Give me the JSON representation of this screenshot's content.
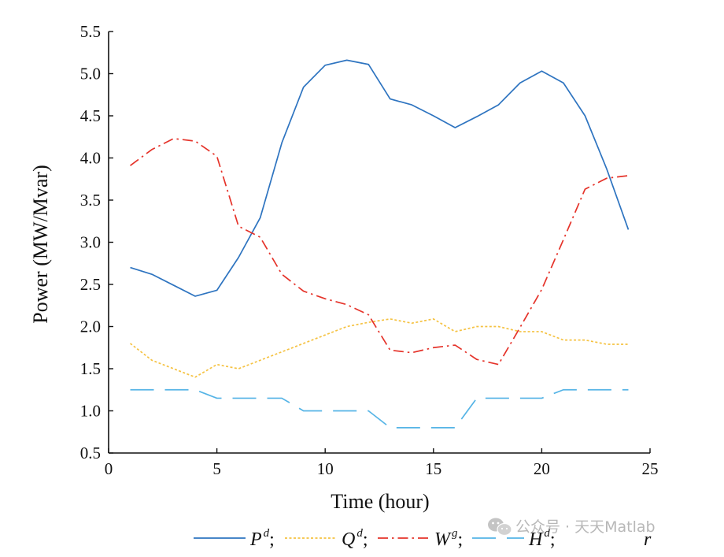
{
  "chart_data": {
    "type": "line",
    "title": "",
    "xlabel": "Time (hour)",
    "ylabel": "Power (MW/Mvar)",
    "xlim": [
      0,
      25
    ],
    "ylim": [
      0.5,
      5.5
    ],
    "xticks": [
      0,
      5,
      10,
      15,
      20,
      25
    ],
    "yticks": [
      0.5,
      1.0,
      1.5,
      2.0,
      2.5,
      3.0,
      3.5,
      4.0,
      4.5,
      5.0,
      5.5
    ],
    "xtick_labels": [
      "0",
      "5",
      "10",
      "15",
      "20",
      "25"
    ],
    "ytick_labels": [
      "0.5",
      "1.0",
      "1.5",
      "2.0",
      "2.5",
      "3.0",
      "3.5",
      "4.0",
      "4.5",
      "5.0",
      "5.5"
    ],
    "x": [
      1,
      2,
      3,
      4,
      5,
      6,
      7,
      8,
      9,
      10,
      11,
      12,
      13,
      14,
      15,
      16,
      17,
      18,
      19,
      20,
      21,
      22,
      23,
      24
    ],
    "legend_position": "bottom",
    "series": [
      {
        "name": "P^d",
        "legend_base": "P",
        "legend_sup": "d",
        "style": "solid",
        "color": "#2e74c0",
        "values": [
          2.7,
          2.62,
          2.49,
          2.36,
          2.43,
          2.82,
          3.29,
          4.18,
          4.84,
          5.1,
          5.16,
          5.11,
          4.7,
          4.63,
          4.5,
          4.36,
          4.49,
          4.63,
          4.89,
          5.03,
          4.89,
          4.5,
          3.87,
          3.15
        ]
      },
      {
        "name": "Q^d",
        "legend_base": "Q",
        "legend_sup": "d",
        "style": "dotted",
        "color": "#f5c242",
        "values": [
          1.8,
          1.6,
          1.5,
          1.4,
          1.55,
          1.5,
          1.6,
          1.7,
          1.8,
          1.9,
          2.0,
          2.05,
          2.09,
          2.04,
          2.09,
          1.94,
          2.0,
          2.0,
          1.94,
          1.94,
          1.84,
          1.84,
          1.79,
          1.79
        ]
      },
      {
        "name": "W^g",
        "legend_base": "W",
        "legend_sup": "g",
        "style": "dashdot",
        "color": "#e5332a",
        "values": [
          3.91,
          4.1,
          4.23,
          4.2,
          4.02,
          3.19,
          3.06,
          2.62,
          2.42,
          2.33,
          2.26,
          2.14,
          1.72,
          1.69,
          1.75,
          1.78,
          1.61,
          1.55,
          1.99,
          2.44,
          3.03,
          3.63,
          3.76,
          3.79
        ]
      },
      {
        "name": "H^d",
        "legend_base": "H",
        "legend_sup": "d",
        "style": "dashed",
        "color": "#55b4e6",
        "values": [
          1.25,
          1.25,
          1.25,
          1.25,
          1.15,
          1.15,
          1.15,
          1.15,
          1.0,
          1.0,
          1.0,
          1.0,
          0.8,
          0.8,
          0.8,
          0.8,
          1.15,
          1.15,
          1.15,
          1.15,
          1.25,
          1.25,
          1.25,
          1.25
        ]
      }
    ],
    "legend_separator": ";",
    "legend_trailing_glyph": "r"
  },
  "watermark": {
    "text": "公众号 · 天天Matlab",
    "icon": "wechat-icon"
  }
}
